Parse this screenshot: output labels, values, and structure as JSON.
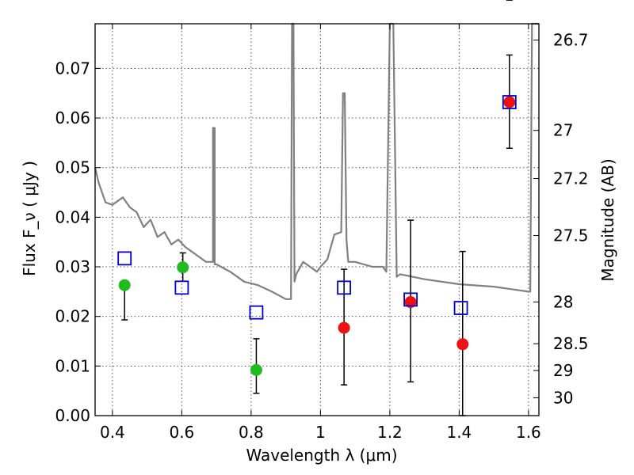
{
  "chart_data": {
    "type": "scatter",
    "xlabel": "Wavelength  λ (μm)",
    "ylabel": "Flux  F_ν  ( μJy )",
    "ylabel_right": "Magnitude (AB)",
    "xlim": [
      0.35,
      1.63
    ],
    "ylim": [
      0.0,
      0.079
    ],
    "grid": true,
    "x_ticks": [
      0.4,
      0.6,
      0.8,
      1.0,
      1.2,
      1.4,
      1.6
    ],
    "x_tick_labels": [
      "0.4",
      "0.6",
      "0.8",
      "1",
      "1.2",
      "1.4",
      "1.6"
    ],
    "y_ticks": [
      0.0,
      0.01,
      0.02,
      0.03,
      0.04,
      0.05,
      0.06,
      0.07
    ],
    "y_tick_labels": [
      "0.00",
      "0.01",
      "0.02",
      "0.03",
      "0.04",
      "0.05",
      "0.06",
      "0.07"
    ],
    "right_axis_ticks": [
      {
        "label": "26.7",
        "flux": 0.0757
      },
      {
        "label": "27",
        "flux": 0.0575
      },
      {
        "label": "27.2",
        "flux": 0.0478
      },
      {
        "label": "27.5",
        "flux": 0.0363
      },
      {
        "label": "28",
        "flux": 0.0229
      },
      {
        "label": "28.5",
        "flux": 0.0145
      },
      {
        "label": "29",
        "flux": 0.0091
      },
      {
        "label": "30",
        "flux": 0.0036
      }
    ],
    "colors": {
      "model": "#808080",
      "green": "#1fbb1f",
      "red": "#ee1111",
      "box": "#0000cc",
      "errorbar": "#000000"
    },
    "model_spectrum": {
      "name": "",
      "x": [
        0.35,
        0.36,
        0.38,
        0.4,
        0.42,
        0.43,
        0.45,
        0.47,
        0.49,
        0.51,
        0.53,
        0.55,
        0.57,
        0.59,
        0.61,
        0.63,
        0.65,
        0.67,
        0.69,
        0.69,
        0.695,
        0.695,
        0.7,
        0.74,
        0.78,
        0.82,
        0.86,
        0.9,
        0.915,
        0.918,
        0.922,
        0.925,
        0.93,
        0.95,
        0.97,
        0.99,
        1.0,
        1.02,
        1.04,
        1.06,
        1.065,
        1.07,
        1.075,
        1.08,
        1.1,
        1.15,
        1.18,
        1.19,
        1.2,
        1.21,
        1.22,
        1.23,
        1.3,
        1.4,
        1.5,
        1.6,
        1.605,
        1.61,
        1.615,
        1.63
      ],
      "y": [
        0.05,
        0.047,
        0.043,
        0.0425,
        0.0435,
        0.044,
        0.042,
        0.041,
        0.038,
        0.0395,
        0.036,
        0.037,
        0.0345,
        0.0355,
        0.034,
        0.033,
        0.032,
        0.031,
        0.031,
        0.058,
        0.058,
        0.0305,
        0.0305,
        0.029,
        0.027,
        0.0263,
        0.025,
        0.0235,
        0.0235,
        0.079,
        0.079,
        0.027,
        0.0285,
        0.031,
        0.03,
        0.029,
        0.03,
        0.0315,
        0.0365,
        0.037,
        0.065,
        0.065,
        0.0355,
        0.031,
        0.031,
        0.03,
        0.03,
        0.029,
        0.079,
        0.079,
        0.028,
        0.0285,
        0.0275,
        0.0265,
        0.026,
        0.025,
        0.025,
        0.079,
        0.079,
        0.079
      ]
    },
    "series": [
      {
        "marker": "circle",
        "color_key": "green",
        "x": [
          0.435,
          0.603,
          0.815
        ],
        "y": [
          0.0263,
          0.0299,
          0.0092
        ],
        "err_low": [
          0.0193,
          0.0271,
          0.0045
        ],
        "err_high": [
          0.0263,
          0.0328,
          0.0155
        ]
      },
      {
        "marker": "circle",
        "color_key": "red",
        "x": [
          1.068,
          1.26,
          1.41,
          1.545
        ],
        "y": [
          0.0177,
          0.0229,
          0.0144,
          0.0632
        ],
        "err_low": [
          0.0062,
          0.0068,
          0.0
        ],
        "err_high": [
          0.0295,
          0.0394,
          0.0331
        ]
      },
      {
        "marker": "square-open",
        "color_key": "box",
        "x": [
          0.435,
          0.6,
          0.815,
          1.068,
          1.26,
          1.405,
          1.545
        ],
        "y": [
          0.0317,
          0.0258,
          0.0208,
          0.0258,
          0.0234,
          0.0217,
          0.0632
        ]
      }
    ],
    "extra_errorbars": [
      {
        "x": 1.545,
        "low": 0.0539,
        "high": 0.0727
      }
    ]
  }
}
